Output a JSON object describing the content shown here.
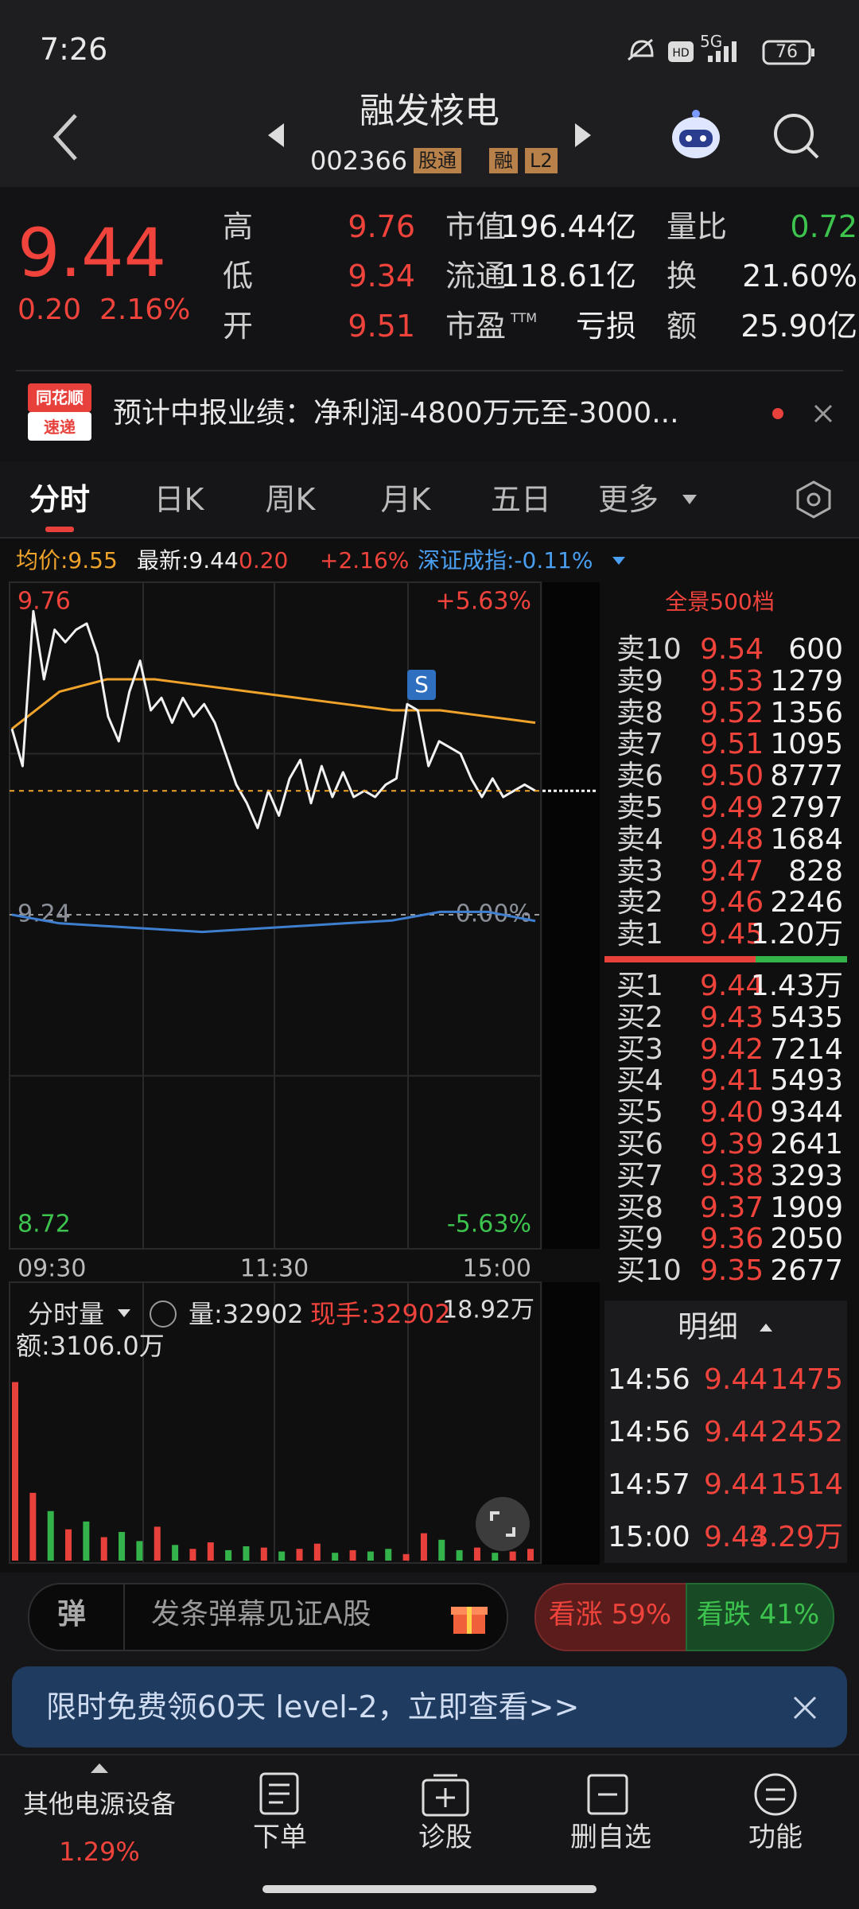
{
  "status_bar": {
    "time": "7:26",
    "network": "5G",
    "battery": "76"
  },
  "header": {
    "title": "融发核电",
    "code": "002366",
    "tags": [
      "股通",
      "融",
      "L2"
    ]
  },
  "quote": {
    "price": "9.44",
    "change": "0.20",
    "change_pct": "2.16%",
    "stats": [
      [
        {
          "label": "高",
          "value": "9.76"
        },
        {
          "label": "低",
          "value": "9.34"
        },
        {
          "label": "开",
          "value": "9.51"
        }
      ],
      [
        {
          "label": "市值",
          "value": "196.44亿"
        },
        {
          "label": "流通",
          "value": "118.61亿"
        },
        {
          "label": "市盈",
          "sup": "TTM",
          "value": "亏损"
        }
      ],
      [
        {
          "label": "量比",
          "value": "0.72"
        },
        {
          "label": "换",
          "value": "21.60%"
        },
        {
          "label": "额",
          "value": "25.90亿"
        }
      ]
    ]
  },
  "news": {
    "source": [
      "同花顺",
      "速递"
    ],
    "text": "预计中报业绩：净利润-4800万元至-3000..."
  },
  "tabs": [
    "分时",
    "日K",
    "周K",
    "月K",
    "五日",
    "更多"
  ],
  "info_row": {
    "avg": "均价:9.55",
    "latest": "最新:9.44",
    "change": "0.20",
    "change_pct": "+2.16%",
    "index": "深证成指:-0.11%"
  },
  "chart_data": {
    "type": "line",
    "series": [
      {
        "color": "#f2f2f2",
        "values": [
          9.54,
          9.48,
          9.73,
          9.62,
          9.7,
          9.68,
          9.7,
          9.71,
          9.66,
          9.56,
          9.52,
          9.6,
          9.65,
          9.57,
          9.59,
          9.55,
          9.59,
          9.56,
          9.58,
          9.55,
          9.5,
          9.45,
          9.42,
          9.38,
          9.44,
          9.4,
          9.46,
          9.49,
          9.42,
          9.48,
          9.43,
          9.47,
          9.43,
          9.44,
          9.43,
          9.45,
          9.46,
          9.58,
          9.57,
          9.48,
          9.52,
          9.51,
          9.5,
          9.46,
          9.43,
          9.46,
          9.43,
          9.44,
          9.45,
          9.44
        ]
      },
      {
        "color": "#f0a32a",
        "values": [
          9.54,
          9.6,
          9.62,
          9.62,
          9.61,
          9.6,
          9.59,
          9.58,
          9.57,
          9.57,
          9.56,
          9.55
        ]
      },
      {
        "color": "#3f7fd0",
        "axis": "y2",
        "values": [
          0,
          -0.15,
          -0.2,
          -0.25,
          -0.3,
          -0.25,
          -0.2,
          -0.15,
          -0.1,
          0.05,
          0.05,
          -0.11
        ]
      }
    ],
    "ylim": [
      8.72,
      9.76
    ],
    "yticks": [
      9.76,
      9.24,
      8.72
    ],
    "y2lim": [
      -5.63,
      5.63
    ],
    "y2ticks": [
      {
        "value": 5.63,
        "label": "+5.63%"
      },
      {
        "value": 0,
        "label": "0.00%"
      },
      {
        "value": -5.63,
        "label": "-5.63%"
      }
    ],
    "time_labels": [
      "09:30",
      "11:30",
      "15:00"
    ],
    "marker": "S",
    "volume": {
      "type": "bar",
      "values": [
        137000,
        52000,
        38000,
        24000,
        30000,
        18000,
        22000,
        15000,
        26000,
        12000,
        9000,
        14000,
        8000,
        11000,
        10000,
        7000,
        9000,
        13000,
        6000,
        8000,
        7000,
        9000,
        5000,
        21000,
        16000,
        8000,
        10000,
        6000,
        7000,
        9000
      ],
      "colors": [
        "#e8413c",
        "#e8413c",
        "#34b34a",
        "#e8413c",
        "#34b34a",
        "#e8413c",
        "#34b34a",
        "#34b34a",
        "#e8413c",
        "#34b34a",
        "#e8413c",
        "#e8413c",
        "#34b34a",
        "#34b34a",
        "#e8413c",
        "#34b34a",
        "#e8413c",
        "#e8413c",
        "#34b34a",
        "#e8413c",
        "#34b34a",
        "#34b34a",
        "#e8413c",
        "#e8413c",
        "#34b34a",
        "#34b34a",
        "#e8413c",
        "#34b34a",
        "#e8413c",
        "#e8413c"
      ],
      "ylim": [
        0,
        189200
      ],
      "yticks": [
        {
          "value": 189200,
          "label": "18.92万"
        }
      ]
    }
  },
  "volume_panel": {
    "title": "分时量",
    "volume": "量:32902",
    "current": "现手:32902",
    "amount": "额:3106.0万"
  },
  "order_book": {
    "title": "全景500档",
    "asks": [
      [
        "卖10",
        "9.54",
        "600"
      ],
      [
        "卖9",
        "9.53",
        "1279"
      ],
      [
        "卖8",
        "9.52",
        "1356"
      ],
      [
        "卖7",
        "9.51",
        "1095"
      ],
      [
        "卖6",
        "9.50",
        "8777"
      ],
      [
        "卖5",
        "9.49",
        "2797"
      ],
      [
        "卖4",
        "9.48",
        "1684"
      ],
      [
        "卖3",
        "9.47",
        "828"
      ],
      [
        "卖2",
        "9.46",
        "2246"
      ],
      [
        "卖1",
        "9.45",
        "1.20万"
      ]
    ],
    "bids": [
      [
        "买1",
        "9.44",
        "1.43万"
      ],
      [
        "买2",
        "9.43",
        "5435"
      ],
      [
        "买3",
        "9.42",
        "7214"
      ],
      [
        "买4",
        "9.41",
        "5493"
      ],
      [
        "买5",
        "9.40",
        "9344"
      ],
      [
        "买6",
        "9.39",
        "2641"
      ],
      [
        "买7",
        "9.38",
        "3293"
      ],
      [
        "买8",
        "9.37",
        "1909"
      ],
      [
        "买9",
        "9.36",
        "2050"
      ],
      [
        "买10",
        "9.35",
        "2677"
      ]
    ]
  },
  "details": {
    "title": "明细",
    "rows": [
      [
        "14:56",
        "9.44",
        "1475"
      ],
      [
        "14:56",
        "9.44",
        "2452"
      ],
      [
        "14:57",
        "9.44",
        "1514"
      ],
      [
        "15:00",
        "9.44",
        "3.29万"
      ]
    ]
  },
  "action_bar": {
    "danmu_button": "弹",
    "placeholder": "发条弹幕见证A股",
    "bullish": "看涨 59%",
    "bearish": "看跌 41%"
  },
  "banner": {
    "text": "限时免费领60天 level-2，立即查看>>"
  },
  "nav": {
    "sector": "其他电源设备",
    "sector_change": "1.29%",
    "items": [
      "下单",
      "诊股",
      "删自选",
      "功能"
    ]
  }
}
